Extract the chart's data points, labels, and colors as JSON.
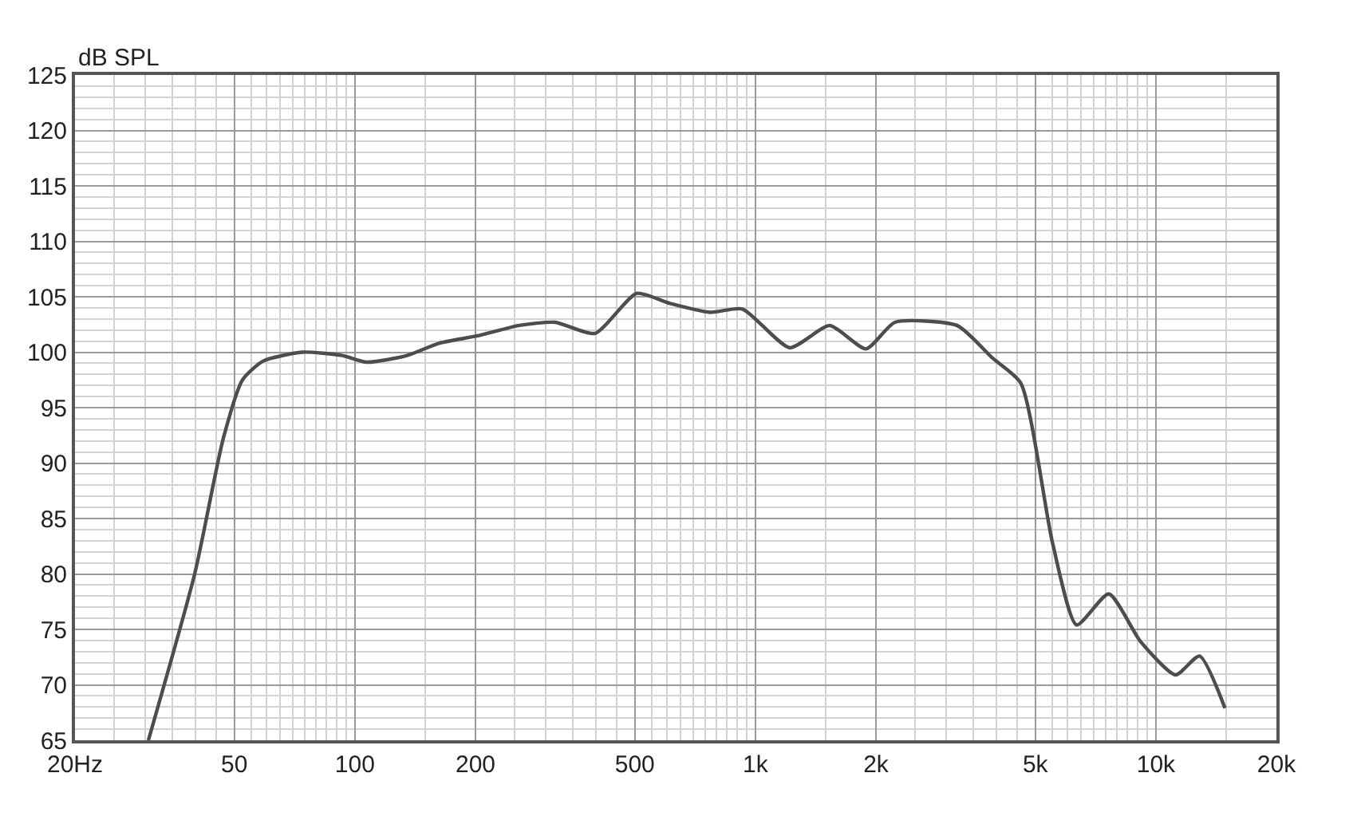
{
  "chart_data": {
    "type": "line",
    "ylabel": "dB SPL",
    "log": "x",
    "grid": true,
    "marker": "none",
    "line_style": "solid",
    "xlim": [
      20,
      20000
    ],
    "ylim": [
      65,
      125
    ],
    "xticks": [
      {
        "value": 20,
        "label": "20Hz"
      },
      50,
      100,
      200,
      500,
      {
        "value": 1000,
        "label": "1k"
      },
      {
        "value": 2000,
        "label": "2k"
      },
      {
        "value": 5000,
        "label": "5k"
      },
      {
        "value": 10000,
        "label": "10k"
      },
      {
        "value": 20000,
        "label": "20k"
      }
    ],
    "yticks": [
      65,
      70,
      75,
      80,
      85,
      90,
      95,
      100,
      105,
      110,
      115,
      120,
      125
    ],
    "x": [
      30.5,
      39.8,
      46.9,
      52.4,
      59,
      74,
      93,
      107,
      135,
      162,
      204,
      256,
      316,
      398,
      505,
      612,
      770,
      928,
      1218,
      1532,
      1890,
      2232,
      3192,
      3900,
      4600,
      5520,
      6340,
      7630,
      9160,
      11200,
      12860,
      14880
    ],
    "series": [
      {
        "color": "#4d4d4d",
        "values": [
          65,
          80,
          92.2,
          97.5,
          99.2,
          100,
          99.7,
          99.1,
          99.7,
          100.8,
          101.5,
          102.4,
          102.7,
          101.7,
          105.3,
          104.4,
          103.6,
          103.9,
          100.4,
          102.4,
          100.3,
          102.7,
          102.4,
          99.5,
          97.2,
          82.8,
          75.4,
          78.2,
          73.9,
          70.9,
          72.6,
          67.9
        ]
      }
    ]
  }
}
